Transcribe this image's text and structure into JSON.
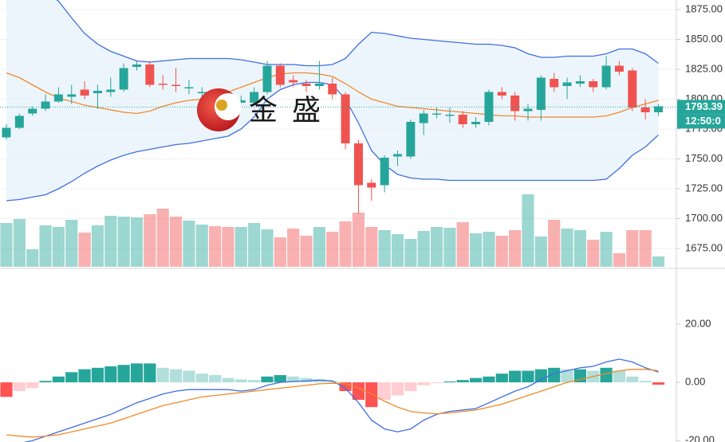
{
  "chart_data": [
    {
      "type": "candlestick",
      "watermark": "金 盛",
      "open": [
        1768,
        1776,
        1788,
        1792,
        1798,
        1802,
        1808,
        1805,
        1806,
        1808,
        1827,
        1829,
        1813,
        1812,
        1809,
        1805,
        1804,
        1802,
        1797,
        1797,
        1806,
        1828,
        1816,
        1813,
        1811,
        1813,
        1804,
        1763,
        1730,
        1728,
        1752,
        1752,
        1780,
        1787,
        1786,
        1787,
        1779,
        1781,
        1806,
        1803,
        1790,
        1791,
        1817,
        1811,
        1813,
        1815,
        1810,
        1828,
        1824,
        1793,
        1789
      ],
      "high": [
        1779,
        1788,
        1794,
        1804,
        1810,
        1812,
        1815,
        1812,
        1818,
        1830,
        1832,
        1832,
        1820,
        1826,
        1816,
        1810,
        1808,
        1806,
        1803,
        1810,
        1832,
        1830,
        1820,
        1816,
        1832,
        1818,
        1806,
        1766,
        1733,
        1753,
        1757,
        1783,
        1791,
        1793,
        1793,
        1790,
        1785,
        1808,
        1810,
        1806,
        1796,
        1820,
        1822,
        1818,
        1820,
        1817,
        1836,
        1832,
        1826,
        1800,
        1796
      ],
      "low": [
        1766,
        1775,
        1786,
        1790,
        1797,
        1796,
        1800,
        1792,
        1802,
        1806,
        1824,
        1810,
        1808,
        1806,
        1804,
        1800,
        1795,
        1793,
        1794,
        1795,
        1804,
        1810,
        1810,
        1806,
        1808,
        1800,
        1758,
        1704,
        1715,
        1722,
        1744,
        1750,
        1770,
        1784,
        1780,
        1776,
        1776,
        1778,
        1800,
        1782,
        1782,
        1782,
        1806,
        1800,
        1810,
        1806,
        1808,
        1820,
        1790,
        1783,
        1786
      ],
      "close": [
        1776,
        1786,
        1792,
        1798,
        1804,
        1804,
        1803,
        1807,
        1808,
        1826,
        1829,
        1812,
        1812,
        1811,
        1810,
        1806,
        1798,
        1796,
        1799,
        1806,
        1828,
        1812,
        1814,
        1811,
        1813,
        1804,
        1763,
        1728,
        1726,
        1751,
        1754,
        1781,
        1788,
        1788,
        1787,
        1779,
        1781,
        1806,
        1803,
        1790,
        1792,
        1818,
        1810,
        1814,
        1815,
        1810,
        1828,
        1823,
        1793,
        1789,
        1794
      ],
      "volume": [
        55,
        60,
        22,
        52,
        50,
        59,
        43,
        52,
        64,
        63,
        62,
        66,
        73,
        63,
        58,
        53,
        51,
        50,
        50,
        55,
        47,
        37,
        48,
        39,
        50,
        44,
        57,
        68,
        50,
        46,
        41,
        35,
        45,
        50,
        49,
        56,
        42,
        44,
        39,
        46,
        91,
        38,
        59,
        48,
        46,
        34,
        44,
        17,
        46,
        46,
        13
      ],
      "upper": [
        1920,
        1910,
        1900,
        1890,
        1882,
        1868,
        1855,
        1846,
        1840,
        1836,
        1832,
        1831,
        1832,
        1833,
        1834,
        1834,
        1834,
        1834,
        1833,
        1831,
        1829,
        1829,
        1829,
        1828,
        1828,
        1829,
        1834,
        1846,
        1856,
        1855,
        1853,
        1851,
        1850,
        1849,
        1848,
        1847,
        1846,
        1846,
        1845,
        1843,
        1838,
        1835,
        1835,
        1836,
        1836,
        1836,
        1838,
        1842,
        1842,
        1838,
        1830
      ],
      "middle": [
        1822,
        1818,
        1812,
        1806,
        1801,
        1798,
        1795,
        1793,
        1791,
        1789,
        1788,
        1790,
        1794,
        1797,
        1799,
        1800,
        1802,
        1806,
        1810,
        1814,
        1818,
        1821,
        1822,
        1822,
        1821,
        1819,
        1813,
        1806,
        1800,
        1797,
        1794,
        1793,
        1792,
        1791,
        1790,
        1789,
        1788,
        1787,
        1786,
        1786,
        1785,
        1785,
        1785,
        1785,
        1785,
        1785,
        1786,
        1789,
        1793,
        1796,
        1799
      ],
      "lower": [
        1715,
        1716,
        1718,
        1720,
        1725,
        1731,
        1738,
        1744,
        1749,
        1753,
        1756,
        1758,
        1760,
        1762,
        1763,
        1765,
        1767,
        1769,
        1775,
        1785,
        1800,
        1808,
        1812,
        1814,
        1814,
        1812,
        1800,
        1780,
        1757,
        1745,
        1737,
        1734,
        1733,
        1733,
        1732,
        1732,
        1732,
        1732,
        1732,
        1732,
        1732,
        1732,
        1732,
        1732,
        1732,
        1732,
        1733,
        1742,
        1753,
        1760,
        1770
      ],
      "up_color": "#26a69a",
      "down_color": "#ef5350",
      "band_color": "#3f6fe0",
      "middle_color": "#f08a2a",
      "band_fill": "#e8f3fb",
      "last_price": 1793.39,
      "countdown": "12:50:0",
      "ylim": [
        1659,
        1883
      ],
      "yticks": [
        {
          "value": 1675,
          "label": "1675.00"
        },
        {
          "value": 1700,
          "label": "1700.00"
        },
        {
          "value": 1725,
          "label": "1725.00"
        },
        {
          "value": 1750,
          "label": "1750.00"
        },
        {
          "value": 1775,
          "label": "1775.00"
        },
        {
          "value": 1800,
          "label": "1800.00"
        },
        {
          "value": 1825,
          "label": "1825.00"
        },
        {
          "value": 1850,
          "label": "1850.00"
        },
        {
          "value": 1875,
          "label": "1875.00"
        }
      ],
      "grid": true
    },
    {
      "type": "macd",
      "histogram": [
        -5,
        -3,
        -2,
        0.5,
        2,
        3.5,
        4.5,
        5,
        5.5,
        6,
        6.5,
        6.5,
        5,
        4.5,
        4,
        3,
        2.5,
        1.5,
        1,
        0.8,
        2,
        2.5,
        2,
        1.5,
        1,
        0.3,
        -3,
        -6,
        -8.5,
        -6,
        -4.5,
        -3,
        -1,
        -0.3,
        0.3,
        0.8,
        1.5,
        2,
        3,
        4,
        4,
        4.5,
        5,
        4.5,
        4.5,
        4,
        5,
        4,
        2,
        0.5,
        -0.8
      ],
      "dif": [
        -22,
        -21,
        -20,
        -18.5,
        -17,
        -15.5,
        -14,
        -12.5,
        -11,
        -9,
        -7,
        -5.5,
        -4,
        -3,
        -2.5,
        -2.5,
        -2.5,
        -2.5,
        -3,
        -2.5,
        -1,
        0,
        0.3,
        0.5,
        0.8,
        0.5,
        -2,
        -7,
        -13,
        -16,
        -17,
        -16,
        -13,
        -11,
        -10,
        -9.5,
        -9,
        -7,
        -5,
        -3,
        -1.5,
        1,
        3,
        4,
        5,
        5.5,
        7,
        8,
        7,
        5,
        3.5
      ],
      "dea": [
        -18,
        -18.5,
        -18.8,
        -18.5,
        -18,
        -17,
        -16,
        -15,
        -14,
        -12.5,
        -11,
        -9.5,
        -8,
        -7,
        -6,
        -5,
        -4.5,
        -4,
        -3.5,
        -3,
        -2.5,
        -2,
        -1.5,
        -1,
        -0.5,
        -0.3,
        -0.5,
        -2,
        -4,
        -6.5,
        -8.5,
        -10,
        -10.5,
        -10.8,
        -10.5,
        -10,
        -9.5,
        -8.5,
        -7.5,
        -6,
        -4.5,
        -3,
        -1.5,
        0,
        1,
        2,
        3,
        4,
        4.5,
        4.5,
        4
      ],
      "dif_color": "#3f6fe0",
      "dea_color": "#f08a2a",
      "histogram_colors": {
        "up_rising": "#26a69a",
        "up_falling": "#b2dfdb",
        "down_falling": "#ff5252",
        "down_rising": "#ffcdd2"
      },
      "ylim": [
        -20.5,
        38.9
      ],
      "yticks": [
        {
          "value": -20,
          "label": "-20.00"
        },
        {
          "value": 0,
          "label": "0.00"
        },
        {
          "value": 20,
          "label": "20.00"
        }
      ],
      "grid": false
    }
  ]
}
